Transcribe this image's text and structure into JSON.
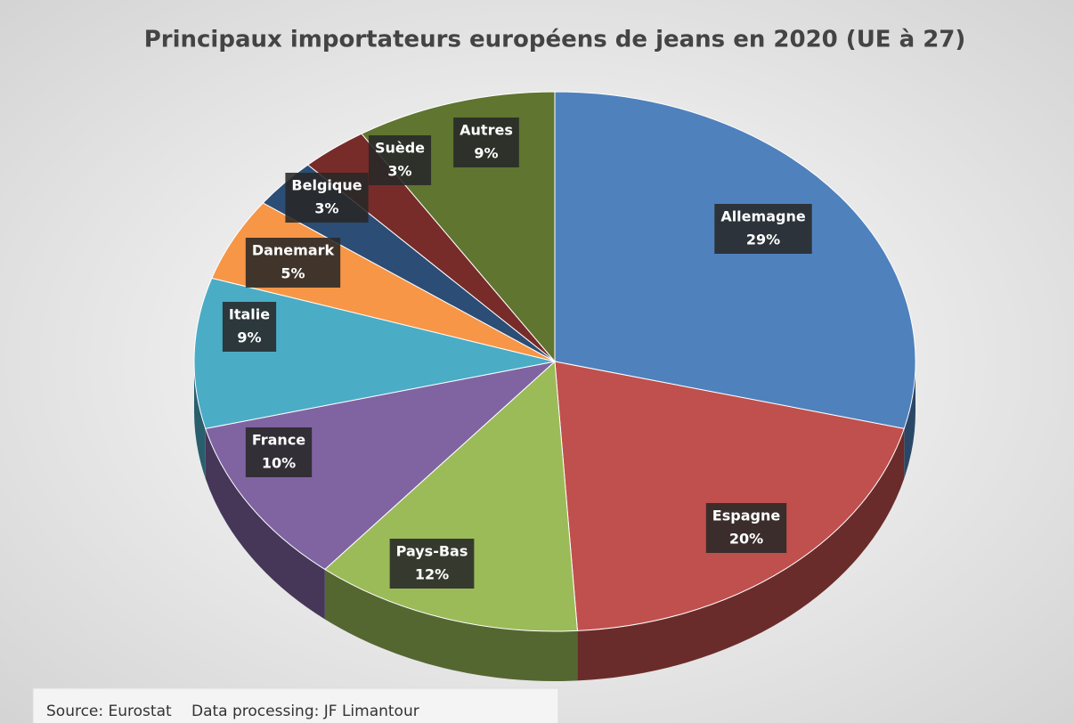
{
  "chart_data": {
    "type": "pie",
    "title": "Principaux importateurs européens de jeans en 2020 (UE à 27)",
    "categories": [
      "Allemagne",
      "Espagne",
      "Pays-Bas",
      "France",
      "Italie",
      "Danemark",
      "Belgique",
      "Suède",
      "Autres"
    ],
    "values": [
      29,
      20,
      12,
      10,
      9,
      5,
      3,
      3,
      9
    ],
    "value_labels": [
      "29%",
      "20%",
      "12%",
      "10%",
      "9%",
      "5%",
      "3%",
      "3%",
      "9%"
    ],
    "colors": [
      "#4f81bd",
      "#c0504d",
      "#9bbb59",
      "#8064a2",
      "#4bacc6",
      "#f79646",
      "#2c4d75",
      "#772c2a",
      "#5f7530"
    ],
    "source": "Source: Eurostat",
    "credit": "Data processing: JF Limantour"
  }
}
